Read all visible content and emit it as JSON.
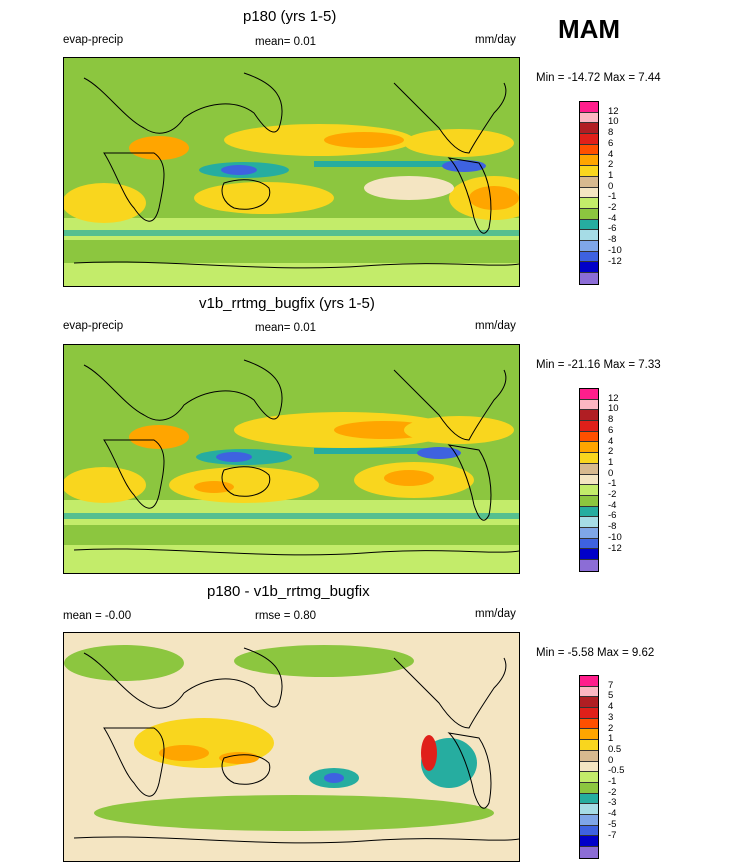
{
  "season": "MAM",
  "panels": [
    {
      "title": "p180 (yrs 1-5)",
      "left_label": "evap-precip",
      "center_label": "mean=  0.01",
      "units": "mm/day",
      "minmax": "Min = -14.72 Max =   7.44",
      "colorbar": [
        "12",
        "10",
        "8",
        "6",
        "4",
        "2",
        "1",
        "0",
        "-1",
        "-2",
        "-4",
        "-6",
        "-8",
        "-10",
        "-12"
      ]
    },
    {
      "title": "v1b_rrtmg_bugfix (yrs 1-5)",
      "left_label": "evap-precip",
      "center_label": "mean=  0.01",
      "units": "mm/day",
      "minmax": "Min = -21.16 Max =   7.33",
      "colorbar": [
        "12",
        "10",
        "8",
        "6",
        "4",
        "2",
        "1",
        "0",
        "-1",
        "-2",
        "-4",
        "-6",
        "-8",
        "-10",
        "-12"
      ]
    },
    {
      "title": "p180 - v1b_rrtmg_bugfix",
      "left_label": "mean =  -0.00",
      "center_label": "rmse =  0.80",
      "units": "mm/day",
      "minmax": "Min =  -5.58 Max =   9.62",
      "colorbar": [
        "7",
        "5",
        "4",
        "3",
        "2",
        "1",
        "0.5",
        "0",
        "-0.5",
        "-1",
        "-2",
        "-3",
        "-4",
        "-5",
        "-7"
      ]
    }
  ],
  "colors": {
    "levels": [
      "#8c6dd6",
      "#0000c8",
      "#3e62e0",
      "#7fa6e8",
      "#a6dce6",
      "#26ada0",
      "#8cc63f",
      "#c3ec6a",
      "#f4e5c2",
      "#d7b98f",
      "#f9d61e",
      "#ffa500",
      "#ff5000",
      "#e0201a",
      "#b01e23",
      "#fcb7c2",
      "#ff1e8c"
    ]
  },
  "chart_data": [
    {
      "type": "heatmap",
      "title": "p180 (yrs 1-5)",
      "variable": "evap-precip",
      "units": "mm/day",
      "mean": 0.01,
      "min": -14.72,
      "max": 7.44,
      "contour_levels": [
        -12,
        -10,
        -8,
        -6,
        -4,
        -2,
        -1,
        0,
        1,
        2,
        4,
        6,
        8,
        10,
        12
      ]
    },
    {
      "type": "heatmap",
      "title": "v1b_rrtmg_bugfix (yrs 1-5)",
      "variable": "evap-precip",
      "units": "mm/day",
      "mean": 0.01,
      "min": -21.16,
      "max": 7.33,
      "contour_levels": [
        -12,
        -10,
        -8,
        -6,
        -4,
        -2,
        -1,
        0,
        1,
        2,
        4,
        6,
        8,
        10,
        12
      ]
    },
    {
      "type": "heatmap",
      "title": "p180 - v1b_rrtmg_bugfix",
      "units": "mm/day",
      "mean": -0.0,
      "rmse": 0.8,
      "min": -5.58,
      "max": 9.62,
      "contour_levels": [
        -7,
        -5,
        -4,
        -3,
        -2,
        -1,
        -0.5,
        0,
        0.5,
        1,
        2,
        3,
        4,
        5,
        7
      ]
    }
  ]
}
